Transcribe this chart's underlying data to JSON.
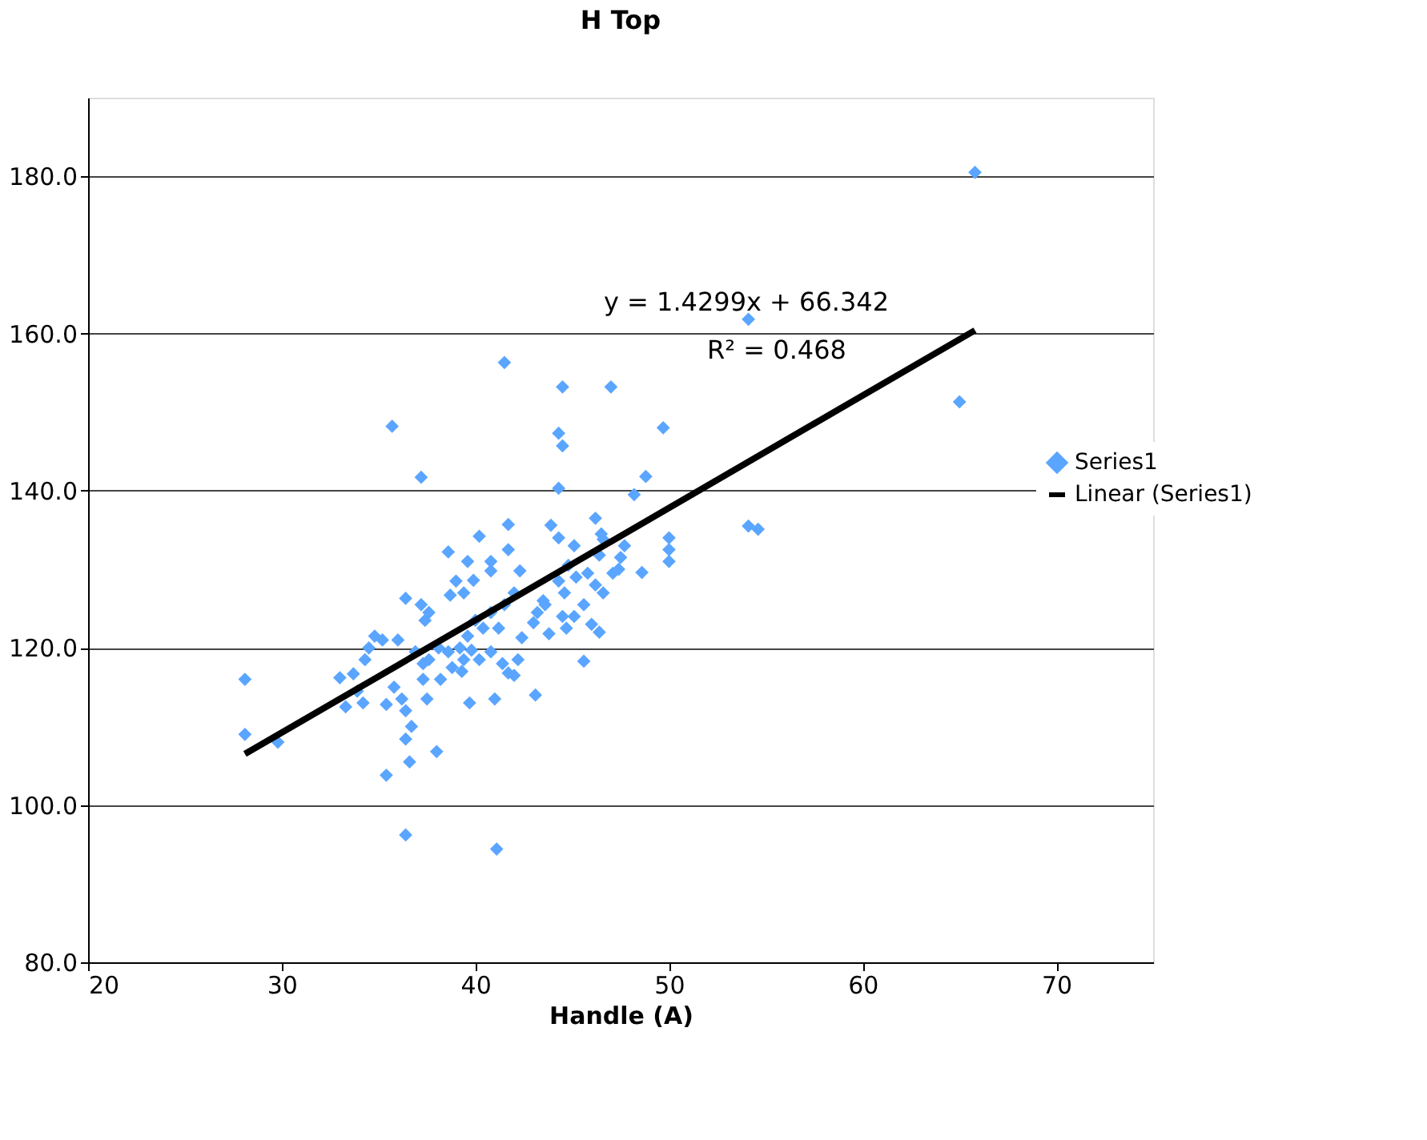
{
  "chart_data": {
    "type": "scatter",
    "title": "H Top",
    "xlabel": "Handle (A)",
    "xlim": [
      20,
      75
    ],
    "xticks": [
      20,
      30,
      40,
      50,
      60,
      70
    ],
    "ylim": [
      80,
      190
    ],
    "yticks": [
      {
        "value": 80,
        "label": "80.0"
      },
      {
        "value": 100,
        "label": "100.0"
      },
      {
        "value": 120,
        "label": "120.0"
      },
      {
        "value": 140,
        "label": "140.0"
      },
      {
        "value": 160,
        "label": "160.0"
      },
      {
        "value": 180,
        "label": "180.0"
      }
    ],
    "grid": "y",
    "legend": "right",
    "annotations": [
      "y = 1.4299x + 66.342",
      "R² = 0.468"
    ],
    "series": [
      {
        "name": "Series1",
        "color": "#5aa5ff",
        "marker": "diamond",
        "x": [
          28.1,
          28.1,
          29.8,
          65.8,
          54.1,
          65,
          54.1,
          54.6,
          41.5,
          44.5,
          47,
          35.7,
          49.7,
          44.3,
          44.5,
          37.2,
          48.8,
          48.2,
          44.3,
          50,
          50,
          50,
          43.9,
          44.3,
          46.2,
          46.5,
          47.7,
          47.5,
          48.6,
          45.1,
          40.2,
          41.7,
          41.7,
          38.6,
          39.6,
          40.8,
          40.8,
          42.3,
          39,
          39.9,
          38.7,
          39.4,
          36.4,
          37.2,
          37.6,
          37.4,
          42,
          43.5,
          44.3,
          44.6,
          45.2,
          45.8,
          46.2,
          46.6,
          47.1,
          47.4,
          45.6,
          46,
          46.4,
          44.5,
          44.7,
          45.1,
          43.2,
          43.6,
          43,
          41.5,
          41.2,
          40.8,
          40.4,
          40,
          39.6,
          39.2,
          39.4,
          39.8,
          40.2,
          39.3,
          38.8,
          38.2,
          38.6,
          37.3,
          37.3,
          37.5,
          36.9,
          36,
          35.8,
          36.2,
          35.4,
          36.4,
          35.2,
          34.8,
          34.5,
          34.3,
          33.7,
          33,
          33.9,
          33.3,
          34.2,
          37.6,
          38.1,
          40.8,
          41.4,
          42.2,
          42,
          41.7,
          41,
          39.7,
          43.1,
          45.6,
          36.7,
          36.4,
          38,
          36.6,
          35.4,
          36.4,
          41.1,
          42.4,
          43.8,
          44.8,
          46.4,
          46.6
        ],
        "values": [
          116,
          109,
          108,
          180.5,
          161.8,
          151.3,
          135.5,
          135.1,
          156.3,
          153.2,
          153.2,
          148.2,
          148,
          147.3,
          145.7,
          141.7,
          141.8,
          139.5,
          140.3,
          134,
          132.5,
          131,
          135.6,
          134,
          136.5,
          134.5,
          133,
          131.5,
          129.6,
          133,
          134.2,
          135.7,
          132.5,
          132.2,
          131,
          131,
          129.8,
          129.8,
          128.5,
          128.6,
          126.7,
          127,
          126.3,
          125.5,
          124.5,
          123.5,
          127,
          126,
          128.5,
          127,
          129,
          129.5,
          128,
          127,
          129.5,
          130,
          125.5,
          123,
          122,
          124,
          122.5,
          124,
          124.5,
          125.5,
          123.2,
          125.5,
          122.5,
          124.5,
          122.5,
          123.5,
          121.5,
          120,
          118.5,
          119.7,
          118.5,
          117,
          117.5,
          116,
          119.5,
          118,
          116,
          113.5,
          119.5,
          121,
          115,
          113.5,
          112.8,
          112,
          121,
          121.5,
          120,
          118.5,
          116.7,
          116.2,
          114.5,
          112.5,
          113,
          118.5,
          120,
          119.5,
          118,
          118.5,
          116.5,
          116.8,
          113.5,
          113,
          114,
          118.3,
          110,
          108.4,
          106.8,
          105.5,
          103.8,
          96.2,
          94.4,
          121.3,
          121.8,
          130.5,
          131.8,
          133.8
        ]
      },
      {
        "name": "Linear (Series1)",
        "color": "#000000",
        "type": "line",
        "x": [
          28.1,
          65.8
        ],
        "values": [
          106.5,
          160.4
        ]
      }
    ]
  }
}
